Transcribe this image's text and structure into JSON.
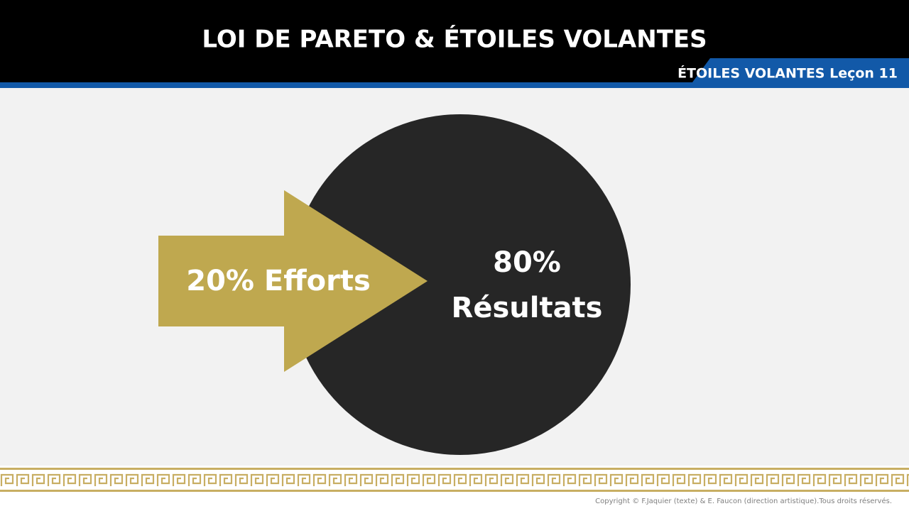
{
  "header": {
    "title": "LOI DE PARETO & ÉTOILES VOLANTES",
    "badge": "ÉTOILES VOLANTES Leçon 11"
  },
  "diagram": {
    "arrow_label": "20% Efforts",
    "circle_label": [
      "80%",
      "Résultats"
    ]
  },
  "footer": {
    "copyright": "Copyright © F.Jaquier (texte) & E. Faucon (direction artistique).Tous droits réservés."
  }
}
